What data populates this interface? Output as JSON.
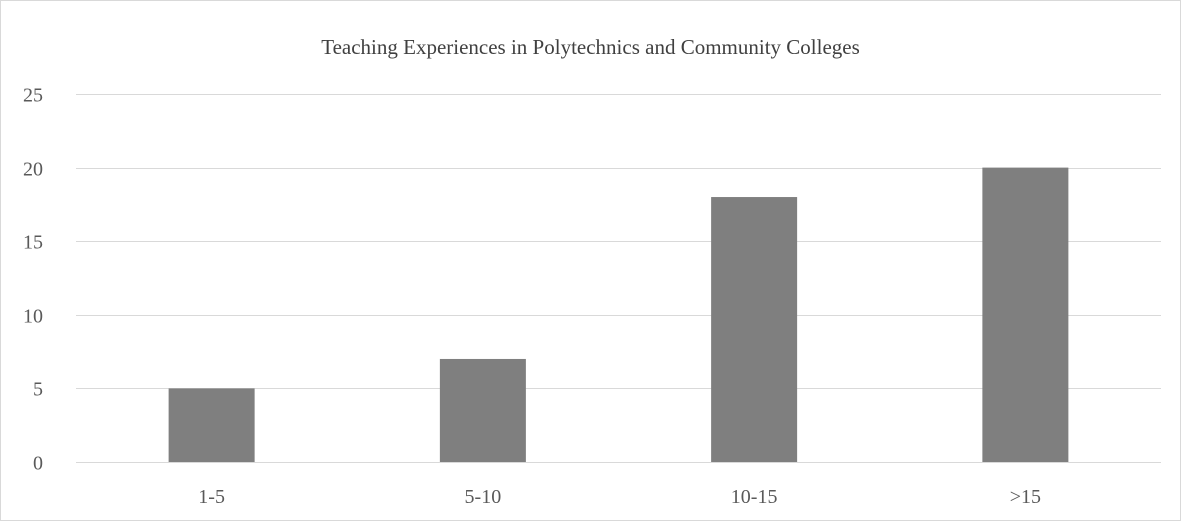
{
  "chart_data": {
    "type": "bar",
    "title": "Teaching Experiences in Polytechnics and Community Colleges",
    "xlabel": "",
    "ylabel": "",
    "categories": [
      "1-5",
      "5-10",
      "10-15",
      ">15"
    ],
    "values": [
      5,
      7,
      18,
      20
    ],
    "ylim": [
      0,
      25
    ],
    "yticks": [
      0,
      5,
      10,
      15,
      20,
      25
    ],
    "grid": true,
    "legend": "none",
    "colors": {
      "bar": "#7f7f7f",
      "grid": "#d9d9d9",
      "text": "#595959"
    }
  }
}
